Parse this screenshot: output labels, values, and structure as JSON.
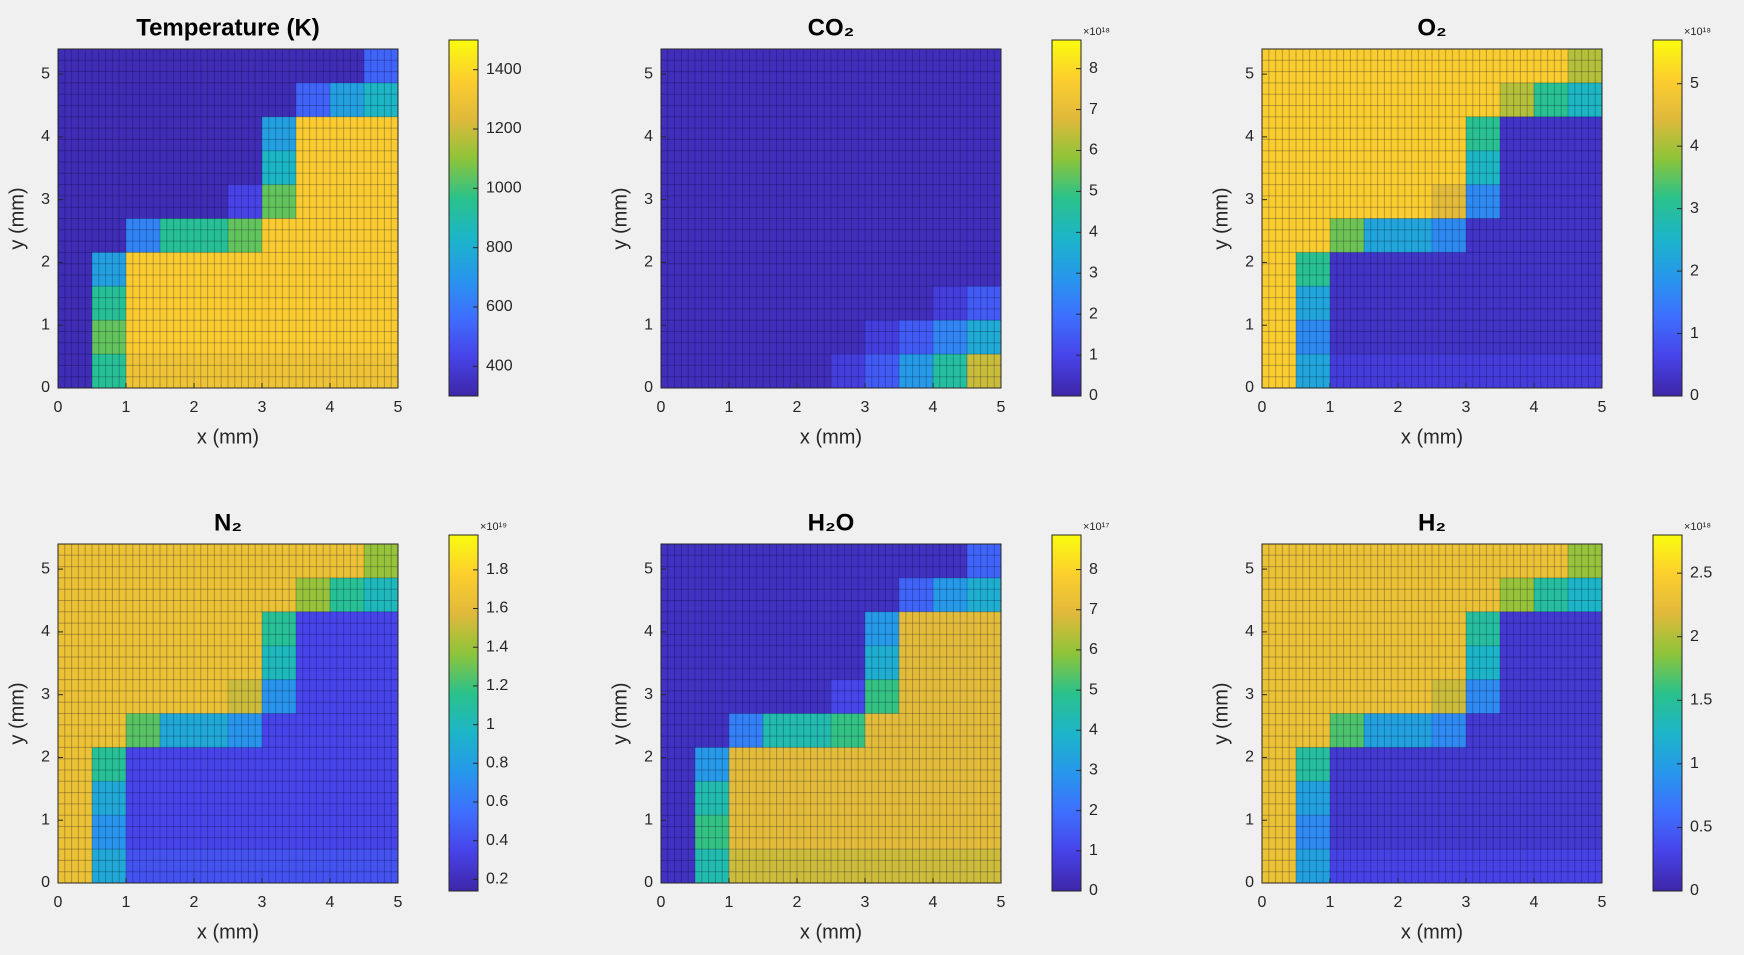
{
  "colormap": [
    "#3e26a8",
    "#4743e8",
    "#3e6ffe",
    "#2797eb",
    "#1cb5c8",
    "#2ac28b",
    "#8dc43a",
    "#e0b93b",
    "#fcce2e",
    "#f9fb0e"
  ],
  "chart_data": [
    {
      "type": "heatmap",
      "title": "Temperature (K)",
      "xlabel": "x (mm)",
      "ylabel": "y (mm)",
      "xlim": [
        0,
        5
      ],
      "ylim": [
        0,
        5.4
      ],
      "xticks": [
        0,
        1,
        2,
        3,
        4,
        5
      ],
      "yticks": [
        0,
        1,
        2,
        3,
        4,
        5
      ],
      "clim": [
        300,
        1500
      ],
      "cticks": [
        400,
        600,
        800,
        1000,
        1200,
        1400
      ],
      "z": [
        [
          330,
          330,
          330,
          330,
          330,
          330,
          330,
          330,
          330,
          534
        ],
        [
          330,
          330,
          330,
          330,
          330,
          330,
          330,
          534,
          738,
          840
        ],
        [
          330,
          330,
          330,
          330,
          330,
          330,
          738,
          1350,
          1350,
          1350
        ],
        [
          330,
          330,
          330,
          330,
          330,
          330,
          840,
          1350,
          1350,
          1350
        ],
        [
          330,
          330,
          330,
          330,
          330,
          432,
          1044,
          1350,
          1350,
          1350
        ],
        [
          330,
          330,
          636,
          942,
          942,
          1044,
          1350,
          1350,
          1350,
          1350
        ],
        [
          330,
          738,
          1350,
          1350,
          1350,
          1350,
          1350,
          1350,
          1350,
          1350
        ],
        [
          330,
          942,
          1350,
          1350,
          1350,
          1350,
          1350,
          1350,
          1350,
          1350
        ],
        [
          330,
          1044,
          1350,
          1350,
          1350,
          1350,
          1350,
          1350,
          1350,
          1350
        ],
        [
          330,
          942,
          1299,
          1299,
          1299,
          1299,
          1299,
          1299,
          1299,
          1299
        ]
      ]
    },
    {
      "type": "heatmap",
      "title": "CO₂",
      "xlabel": "x (mm)",
      "ylabel": "y (mm)",
      "xlim": [
        0,
        5
      ],
      "ylim": [
        0,
        5.4
      ],
      "xticks": [
        0,
        1,
        2,
        3,
        4,
        5
      ],
      "yticks": [
        0,
        1,
        2,
        3,
        4,
        5
      ],
      "clim": [
        0,
        8.7
      ],
      "cticks": [
        0,
        1,
        2,
        3,
        4,
        5,
        6,
        7,
        8
      ],
      "colorbar_exponent": "×10¹⁸",
      "z": [
        [
          0.3,
          0.3,
          0.3,
          0.3,
          0.3,
          0.3,
          0.3,
          0.3,
          0.3,
          0.3
        ],
        [
          0.3,
          0.3,
          0.3,
          0.3,
          0.3,
          0.3,
          0.3,
          0.3,
          0.3,
          0.3
        ],
        [
          0.3,
          0.3,
          0.3,
          0.3,
          0.3,
          0.3,
          0.3,
          0.3,
          0.3,
          0.3
        ],
        [
          0.3,
          0.3,
          0.3,
          0.3,
          0.3,
          0.3,
          0.3,
          0.3,
          0.3,
          0.3
        ],
        [
          0.3,
          0.3,
          0.3,
          0.3,
          0.3,
          0.3,
          0.3,
          0.3,
          0.3,
          0.3
        ],
        [
          0.3,
          0.3,
          0.3,
          0.3,
          0.3,
          0.3,
          0.3,
          0.3,
          0.3,
          0.3
        ],
        [
          0.3,
          0.3,
          0.3,
          0.3,
          0.3,
          0.3,
          0.3,
          0.3,
          0.3,
          0.3
        ],
        [
          0.3,
          0.3,
          0.3,
          0.3,
          0.3,
          0.3,
          0.3,
          0.3,
          0.8,
          1.5
        ],
        [
          0.3,
          0.3,
          0.3,
          0.3,
          0.3,
          0.3,
          0.8,
          1.5,
          2.5,
          3.5
        ],
        [
          0.3,
          0.3,
          0.3,
          0.3,
          0.3,
          0.8,
          1.5,
          3,
          4.5,
          6.5
        ]
      ]
    },
    {
      "type": "heatmap",
      "title": "O₂",
      "xlabel": "x (mm)",
      "ylabel": "y (mm)",
      "xlim": [
        0,
        5
      ],
      "ylim": [
        0,
        5.4
      ],
      "xticks": [
        0,
        1,
        2,
        3,
        4,
        5
      ],
      "yticks": [
        0,
        1,
        2,
        3,
        4,
        5
      ],
      "clim": [
        0,
        5.7
      ],
      "cticks": [
        0,
        1,
        2,
        3,
        4,
        5
      ],
      "colorbar_exponent": "×10¹⁸",
      "z": [
        [
          5,
          5,
          5,
          5,
          5,
          5,
          5,
          5,
          5,
          4.1
        ],
        [
          5,
          5,
          5,
          5,
          5,
          5,
          5,
          4.1,
          3.1,
          2.6
        ],
        [
          5,
          5,
          5,
          5,
          5,
          5,
          3.1,
          0.3,
          0.3,
          0.3
        ],
        [
          5,
          5,
          5,
          5,
          5,
          5,
          2.6,
          0.3,
          0.3,
          0.3
        ],
        [
          5,
          5,
          5,
          5,
          5,
          4.5,
          1.7,
          0.3,
          0.3,
          0.3
        ],
        [
          5,
          5,
          3.6,
          2.2,
          2.2,
          1.7,
          0.3,
          0.3,
          0.3,
          0.3
        ],
        [
          5,
          3.1,
          0.3,
          0.3,
          0.3,
          0.3,
          0.3,
          0.3,
          0.3,
          0.3
        ],
        [
          5,
          2.2,
          0.3,
          0.3,
          0.3,
          0.3,
          0.3,
          0.3,
          0.3,
          0.3
        ],
        [
          5,
          1.7,
          0.3,
          0.3,
          0.3,
          0.3,
          0.3,
          0.3,
          0.3,
          0.3
        ],
        [
          5,
          2.2,
          0.5,
          0.5,
          0.5,
          0.5,
          0.5,
          0.5,
          0.5,
          0.5
        ]
      ]
    },
    {
      "type": "heatmap",
      "title": "N₂",
      "xlabel": "x (mm)",
      "ylabel": "y (mm)",
      "xlim": [
        0,
        5
      ],
      "ylim": [
        0,
        5.4
      ],
      "xticks": [
        0,
        1,
        2,
        3,
        4,
        5
      ],
      "yticks": [
        0,
        1,
        2,
        3,
        4,
        5
      ],
      "clim": [
        0.14,
        1.98
      ],
      "cticks": [
        0.2,
        0.4,
        0.6,
        0.8,
        1,
        1.2,
        1.4,
        1.6,
        1.8
      ],
      "colorbar_exponent": "×10¹⁹",
      "z": [
        [
          1.65,
          1.65,
          1.65,
          1.65,
          1.65,
          1.65,
          1.65,
          1.65,
          1.65,
          1.39
        ],
        [
          1.65,
          1.65,
          1.65,
          1.65,
          1.65,
          1.65,
          1.65,
          1.39,
          1.13,
          1.0
        ],
        [
          1.65,
          1.65,
          1.65,
          1.65,
          1.65,
          1.65,
          1.13,
          0.35,
          0.35,
          0.35
        ],
        [
          1.65,
          1.65,
          1.65,
          1.65,
          1.65,
          1.65,
          1.0,
          0.35,
          0.35,
          0.35
        ],
        [
          1.65,
          1.65,
          1.65,
          1.65,
          1.65,
          1.52,
          0.74,
          0.35,
          0.35,
          0.35
        ],
        [
          1.65,
          1.65,
          1.26,
          0.87,
          0.87,
          0.74,
          0.35,
          0.35,
          0.35,
          0.35
        ],
        [
          1.65,
          1.13,
          0.35,
          0.35,
          0.35,
          0.35,
          0.35,
          0.35,
          0.35,
          0.35
        ],
        [
          1.65,
          0.87,
          0.35,
          0.35,
          0.35,
          0.35,
          0.35,
          0.35,
          0.35,
          0.35
        ],
        [
          1.65,
          0.74,
          0.35,
          0.35,
          0.35,
          0.35,
          0.35,
          0.35,
          0.35,
          0.35
        ],
        [
          1.65,
          0.87,
          0.42,
          0.42,
          0.42,
          0.42,
          0.42,
          0.42,
          0.42,
          0.42
        ]
      ]
    },
    {
      "type": "heatmap",
      "title": "H₂O",
      "xlabel": "x (mm)",
      "ylabel": "y (mm)",
      "xlim": [
        0,
        5
      ],
      "ylim": [
        0,
        5.4
      ],
      "xticks": [
        0,
        1,
        2,
        3,
        4,
        5
      ],
      "yticks": [
        0,
        1,
        2,
        3,
        4,
        5
      ],
      "clim": [
        0,
        8.86
      ],
      "cticks": [
        0,
        1,
        2,
        3,
        4,
        5,
        6,
        7,
        8
      ],
      "colorbar_exponent": "×10¹⁷",
      "z": [
        [
          0.4,
          0.4,
          0.4,
          0.4,
          0.4,
          0.4,
          0.4,
          0.4,
          0.4,
          1.72
        ],
        [
          0.4,
          0.4,
          0.4,
          0.4,
          0.4,
          0.4,
          0.4,
          1.72,
          3.04,
          3.7
        ],
        [
          0.4,
          0.4,
          0.4,
          0.4,
          0.4,
          0.4,
          3.04,
          7,
          7,
          7
        ],
        [
          0.4,
          0.4,
          0.4,
          0.4,
          0.4,
          0.4,
          3.7,
          7,
          7,
          7
        ],
        [
          0.4,
          0.4,
          0.4,
          0.4,
          0.4,
          1.06,
          5.02,
          7,
          7,
          7
        ],
        [
          0.4,
          0.4,
          2.38,
          4.36,
          4.36,
          5.02,
          7,
          7,
          7,
          7
        ],
        [
          0.4,
          3.04,
          7,
          7,
          7,
          7,
          7,
          7,
          7,
          7
        ],
        [
          0.4,
          4.36,
          7,
          7,
          7,
          7,
          7,
          7,
          7,
          7
        ],
        [
          0.4,
          5.02,
          7,
          7,
          7,
          7,
          7,
          7,
          7,
          7
        ],
        [
          0.4,
          4.36,
          6.67,
          6.67,
          6.67,
          6.67,
          6.67,
          6.67,
          6.67,
          6.67
        ]
      ]
    },
    {
      "type": "heatmap",
      "title": "H₂",
      "xlabel": "x (mm)",
      "ylabel": "y (mm)",
      "xlim": [
        0,
        5
      ],
      "ylim": [
        0,
        5.4
      ],
      "xticks": [
        0,
        1,
        2,
        3,
        4,
        5
      ],
      "yticks": [
        0,
        1,
        2,
        3,
        4,
        5
      ],
      "clim": [
        0,
        2.8
      ],
      "cticks": [
        0,
        0.5,
        1,
        1.5,
        2,
        2.5
      ],
      "colorbar_exponent": "×10¹⁸",
      "z": [
        [
          2.3,
          2.3,
          2.3,
          2.3,
          2.3,
          2.3,
          2.3,
          2.3,
          2.3,
          1.9
        ],
        [
          2.3,
          2.3,
          2.3,
          2.3,
          2.3,
          2.3,
          2.3,
          1.9,
          1.46,
          1.25
        ],
        [
          2.3,
          2.3,
          2.3,
          2.3,
          2.3,
          2.3,
          1.46,
          0.2,
          0.2,
          0.2
        ],
        [
          2.3,
          2.3,
          2.3,
          2.3,
          2.3,
          2.3,
          1.25,
          0.2,
          0.2,
          0.2
        ],
        [
          2.3,
          2.3,
          2.3,
          2.3,
          2.3,
          2.1,
          0.83,
          0.2,
          0.2,
          0.2
        ],
        [
          2.3,
          2.3,
          1.67,
          1.04,
          1.04,
          0.83,
          0.2,
          0.2,
          0.2,
          0.2
        ],
        [
          2.3,
          1.46,
          0.2,
          0.2,
          0.2,
          0.2,
          0.2,
          0.2,
          0.2,
          0.2
        ],
        [
          2.3,
          1.04,
          0.2,
          0.2,
          0.2,
          0.2,
          0.2,
          0.2,
          0.2,
          0.2
        ],
        [
          2.3,
          0.83,
          0.2,
          0.2,
          0.2,
          0.2,
          0.2,
          0.2,
          0.2,
          0.2
        ],
        [
          2.3,
          1.04,
          0.3,
          0.3,
          0.3,
          0.3,
          0.3,
          0.3,
          0.3,
          0.3
        ]
      ]
    }
  ]
}
